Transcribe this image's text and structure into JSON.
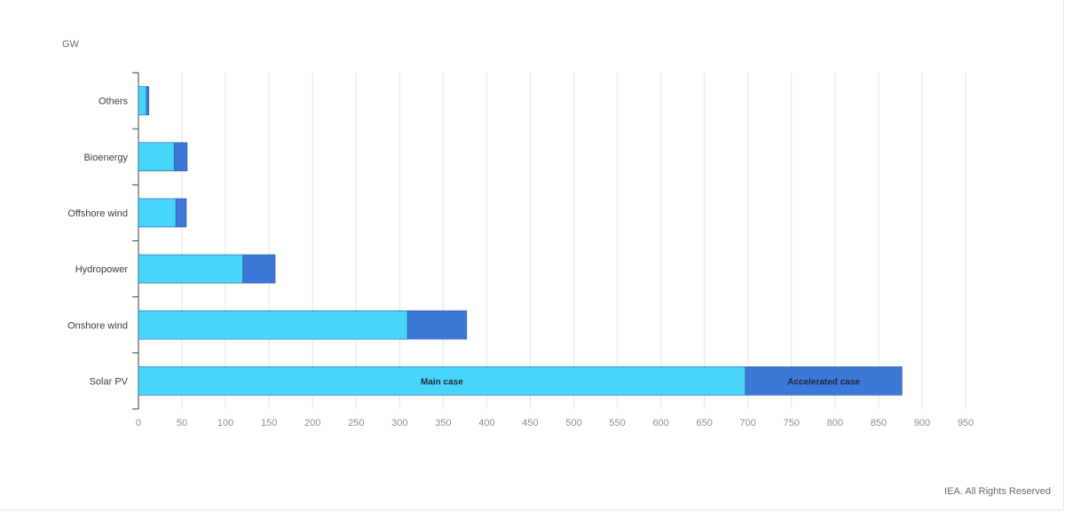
{
  "chart_data": {
    "type": "bar",
    "orientation": "horizontal",
    "stacked": true,
    "unit": "GW",
    "categories": [
      "Others",
      "Bioenergy",
      "Offshore wind",
      "Hydropower",
      "Onshore wind",
      "Solar PV"
    ],
    "series": [
      {
        "name": "Main case",
        "color": "#48d5fa",
        "values": [
          9,
          41,
          43,
          120,
          309,
          697
        ]
      },
      {
        "name": "Accelerated case",
        "color": "#3c78d8",
        "values": [
          3,
          15,
          12,
          37,
          68,
          180
        ]
      }
    ],
    "xlim": [
      0,
      950
    ],
    "xticks": [
      0,
      50,
      100,
      150,
      200,
      250,
      300,
      350,
      400,
      450,
      500,
      550,
      600,
      650,
      700,
      750,
      800,
      850,
      900,
      950
    ],
    "grid": true,
    "inline_labels": {
      "category": "Solar PV"
    }
  },
  "footer": {
    "credit": "IEA. All Rights Reserved"
  }
}
